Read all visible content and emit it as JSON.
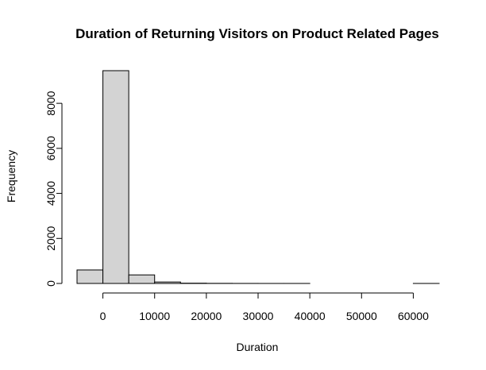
{
  "chart_data": {
    "type": "bar",
    "title": "Duration of Returning Visitors on Product Related Pages",
    "xlabel": "Duration",
    "ylabel": "Frequency",
    "bar_color": "#d3d3d3",
    "bins": [
      {
        "start": -5000,
        "end": 0,
        "count": 600
      },
      {
        "start": 0,
        "end": 5000,
        "count": 9450
      },
      {
        "start": 5000,
        "end": 10000,
        "count": 380
      },
      {
        "start": 10000,
        "end": 15000,
        "count": 65
      },
      {
        "start": 15000,
        "end": 20000,
        "count": 12
      },
      {
        "start": 20000,
        "end": 25000,
        "count": 5
      },
      {
        "start": 25000,
        "end": 30000,
        "count": 2
      },
      {
        "start": 30000,
        "end": 35000,
        "count": 1
      },
      {
        "start": 35000,
        "end": 40000,
        "count": 1
      },
      {
        "start": 40000,
        "end": 45000,
        "count": 0
      },
      {
        "start": 45000,
        "end": 50000,
        "count": 0
      },
      {
        "start": 50000,
        "end": 55000,
        "count": 0
      },
      {
        "start": 55000,
        "end": 60000,
        "count": 0
      },
      {
        "start": 60000,
        "end": 65000,
        "count": 1
      }
    ],
    "xlim": [
      -5000,
      65000
    ],
    "ylim": [
      0,
      9450
    ],
    "x_ticks": [
      0,
      10000,
      20000,
      30000,
      40000,
      50000,
      60000
    ],
    "y_ticks": [
      0,
      2000,
      4000,
      6000,
      8000
    ],
    "x_tick_labels": [
      "0",
      "10000",
      "20000",
      "30000",
      "40000",
      "50000",
      "60000"
    ],
    "y_tick_labels": [
      "0",
      "2000",
      "4000",
      "6000",
      "8000"
    ]
  }
}
